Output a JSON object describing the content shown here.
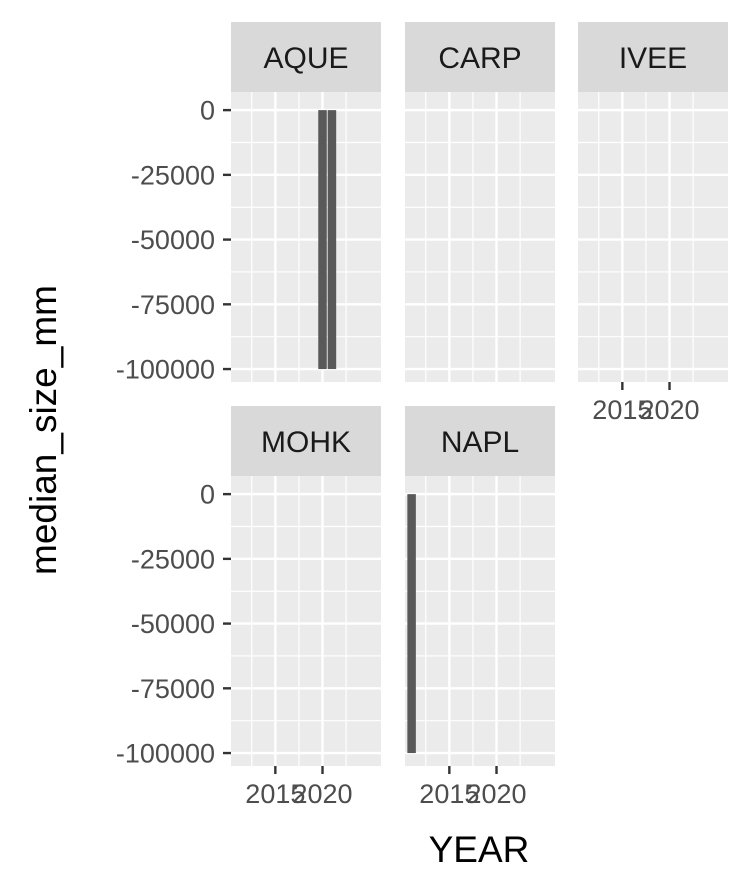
{
  "chart_data": {
    "type": "bar",
    "facet_by": "SITE",
    "xlabel": "YEAR",
    "ylabel": "median_size_mm",
    "ylim": [
      -105000,
      7000
    ],
    "xlim": [
      2010.3,
      2026.2
    ],
    "y_ticks": [
      0,
      -25000,
      -50000,
      -75000,
      -100000
    ],
    "y_tick_labels": [
      "0",
      "-25000",
      "-50000",
      "-75000",
      "-100000"
    ],
    "x_ticks": [
      2015,
      2020
    ],
    "x_tick_labels": [
      "2015",
      "2020"
    ],
    "grid": true,
    "legend": "none",
    "bar_color": "#595959",
    "panel_bg": "#ebebeb",
    "strip_bg": "#d9d9d9",
    "facets": [
      {
        "label": "AQUE",
        "bars": [
          {
            "x": 2020,
            "y": -99999
          },
          {
            "x": 2021,
            "y": -99999
          }
        ]
      },
      {
        "label": "CARP",
        "bars": []
      },
      {
        "label": "IVEE",
        "bars": []
      },
      {
        "label": "MOHK",
        "bars": []
      },
      {
        "label": "NAPL",
        "bars": [
          {
            "x": 2011,
            "y": -99999
          }
        ]
      }
    ]
  }
}
